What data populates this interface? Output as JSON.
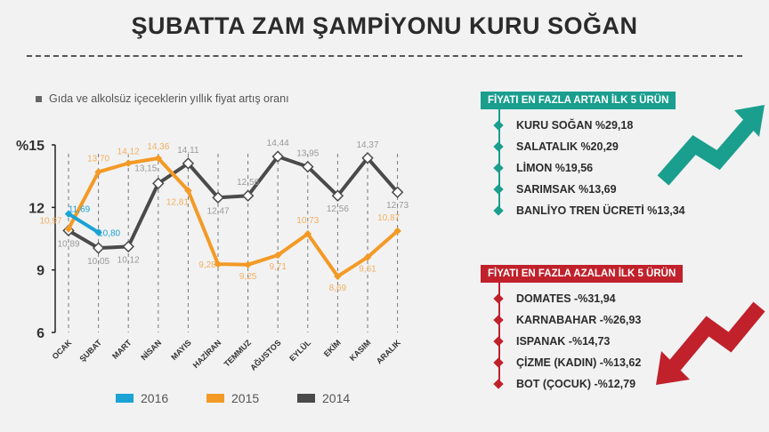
{
  "title": "ŞUBATTA ZAM ŞAMPİYONU KURU SOĞAN",
  "chart_data": {
    "type": "line",
    "subtitle": "Gıda ve alkolsüz içeceklerin yıllık fiyat artış oranı",
    "categories": [
      "OCAK",
      "ŞUBAT",
      "MART",
      "NİSAN",
      "MAYIS",
      "HAZİRAN",
      "TEMMUZ",
      "AĞUSTOS",
      "EYLÜL",
      "EKİM",
      "KASIM",
      "ARALIK"
    ],
    "y_ticks": [
      "%15",
      "12",
      "9",
      "6"
    ],
    "ylim": [
      6,
      15
    ],
    "grid": "vertical dashed lines",
    "legend_position": "bottom",
    "series": [
      {
        "name": "2016",
        "color": "#1aa3d4",
        "values": [
          11.69,
          10.8,
          null,
          null,
          null,
          null,
          null,
          null,
          null,
          null,
          null,
          null
        ],
        "labels": [
          "11,69",
          "10,80"
        ]
      },
      {
        "name": "2015",
        "color": "#f39a26",
        "values": [
          10.97,
          13.7,
          14.12,
          14.36,
          12.81,
          9.28,
          9.25,
          9.71,
          10.73,
          8.69,
          9.61,
          10.87
        ],
        "labels": [
          "10,97",
          "13,70",
          "14,12",
          "14,36",
          "12,81",
          "9,28",
          "9,25",
          "9,71",
          "10,73",
          "8,69",
          "9,61",
          "10,87"
        ]
      },
      {
        "name": "2014",
        "color": "#4a4a4a",
        "values": [
          10.89,
          10.05,
          10.12,
          13.15,
          14.11,
          12.47,
          12.56,
          14.44,
          13.95,
          12.56,
          14.37,
          12.73
        ],
        "labels": [
          "10,89",
          "10,05",
          "10,12",
          "13,15",
          "14,11",
          "12,47",
          "12,56",
          "14,44",
          "13,95",
          "12,56",
          "14,37",
          "12,73"
        ]
      }
    ]
  },
  "rising": {
    "heading": "FİYATI EN FAZLA ARTAN İLK 5 ÜRÜN",
    "color": "#1a9e8e",
    "items": [
      "KURU SOĞAN %29,18",
      "SALATALIK %20,29",
      "LİMON %19,56",
      "SARIMSAK %13,69",
      "BANLİYO TREN ÜCRETİ %13,34"
    ]
  },
  "falling": {
    "heading": "FİYATI EN FAZLA AZALAN İLK 5 ÜRÜN",
    "color": "#c0212b",
    "items": [
      "DOMATES -%31,94",
      "KARNABAHAR -%26,93",
      "ISPANAK -%14,73",
      "ÇİZME (KADIN) -%13,62",
      "BOT (ÇOCUK) -%12,79"
    ]
  }
}
